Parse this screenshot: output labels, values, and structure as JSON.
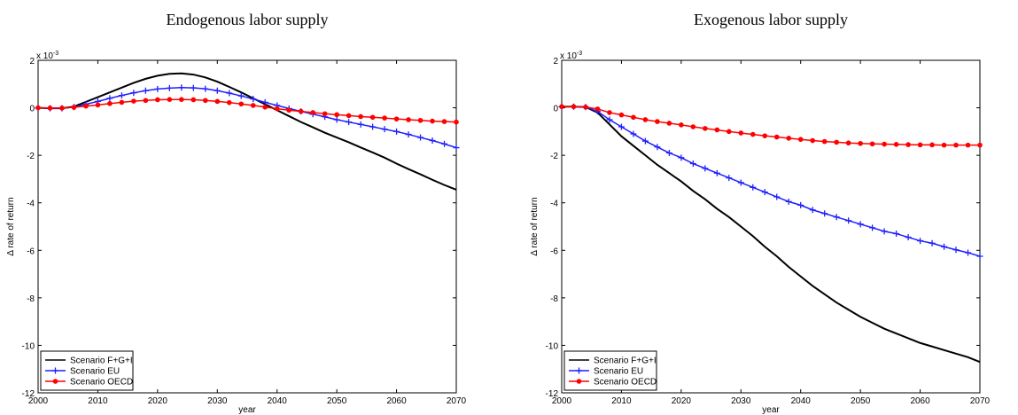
{
  "chart_data": [
    {
      "type": "line",
      "title": "Endogenous labor supply",
      "xlabel": "year",
      "ylabel": "Δ rate of return",
      "axis_multiplier": {
        "base": "x 10",
        "exponent": "-3"
      },
      "x": [
        2000,
        2002,
        2004,
        2006,
        2008,
        2010,
        2012,
        2014,
        2016,
        2018,
        2020,
        2022,
        2024,
        2026,
        2028,
        2030,
        2032,
        2034,
        2036,
        2038,
        2040,
        2042,
        2044,
        2046,
        2048,
        2050,
        2052,
        2054,
        2056,
        2058,
        2060,
        2062,
        2064,
        2066,
        2068,
        2070
      ],
      "xlim": [
        2000,
        2070
      ],
      "xticks": [
        2000,
        2010,
        2020,
        2030,
        2040,
        2050,
        2060,
        2070
      ],
      "ylim": [
        -12,
        2
      ],
      "yticks": [
        -12,
        -10,
        -8,
        -6,
        -4,
        -2,
        0,
        2
      ],
      "legend": "lower left",
      "series": [
        {
          "name": "Scenario F+G+I",
          "color": "#000000",
          "marker": "none",
          "values": [
            0,
            -0.02,
            -0.02,
            0.05,
            0.25,
            0.45,
            0.65,
            0.85,
            1.05,
            1.22,
            1.35,
            1.43,
            1.45,
            1.4,
            1.28,
            1.1,
            0.88,
            0.65,
            0.4,
            0.15,
            -0.1,
            -0.35,
            -0.6,
            -0.82,
            -1.05,
            -1.25,
            -1.45,
            -1.67,
            -1.88,
            -2.1,
            -2.35,
            -2.58,
            -2.8,
            -3.03,
            -3.25,
            -3.45
          ]
        },
        {
          "name": "Scenario EU",
          "color": "#1f1fff",
          "marker": "plus",
          "values": [
            0,
            -0.02,
            -0.02,
            0.03,
            0.15,
            0.27,
            0.4,
            0.52,
            0.63,
            0.72,
            0.79,
            0.83,
            0.85,
            0.84,
            0.8,
            0.72,
            0.62,
            0.5,
            0.37,
            0.23,
            0.1,
            -0.03,
            -0.15,
            -0.27,
            -0.38,
            -0.5,
            -0.6,
            -0.7,
            -0.8,
            -0.9,
            -1.0,
            -1.12,
            -1.25,
            -1.38,
            -1.52,
            -1.68
          ]
        },
        {
          "name": "Scenario OECD",
          "color": "#ff0000",
          "marker": "dot",
          "values": [
            0,
            -0.01,
            -0.01,
            0.02,
            0.07,
            0.12,
            0.18,
            0.23,
            0.28,
            0.31,
            0.34,
            0.35,
            0.35,
            0.34,
            0.31,
            0.27,
            0.22,
            0.16,
            0.1,
            0.03,
            -0.04,
            -0.1,
            -0.15,
            -0.2,
            -0.25,
            -0.29,
            -0.33,
            -0.37,
            -0.4,
            -0.43,
            -0.47,
            -0.5,
            -0.53,
            -0.56,
            -0.58,
            -0.6
          ]
        }
      ]
    },
    {
      "type": "line",
      "title": "Exogenous labor supply",
      "xlabel": "year",
      "ylabel": "Δ rate of return",
      "axis_multiplier": {
        "base": "x 10",
        "exponent": "-3"
      },
      "x": [
        2000,
        2002,
        2004,
        2006,
        2008,
        2010,
        2012,
        2014,
        2016,
        2018,
        2020,
        2022,
        2024,
        2026,
        2028,
        2030,
        2032,
        2034,
        2036,
        2038,
        2040,
        2042,
        2044,
        2046,
        2048,
        2050,
        2052,
        2054,
        2056,
        2058,
        2060,
        2062,
        2064,
        2066,
        2068,
        2070
      ],
      "xlim": [
        2000,
        2070
      ],
      "xticks": [
        2000,
        2010,
        2020,
        2030,
        2040,
        2050,
        2060,
        2070
      ],
      "ylim": [
        -12,
        2
      ],
      "yticks": [
        -12,
        -10,
        -8,
        -6,
        -4,
        -2,
        0,
        2
      ],
      "legend": "lower left",
      "series": [
        {
          "name": "Scenario F+G+I",
          "color": "#000000",
          "marker": "none",
          "values": [
            0.05,
            0.05,
            0.03,
            -0.2,
            -0.7,
            -1.2,
            -1.6,
            -2.0,
            -2.4,
            -2.75,
            -3.1,
            -3.5,
            -3.85,
            -4.25,
            -4.6,
            -5.0,
            -5.4,
            -5.85,
            -6.25,
            -6.7,
            -7.1,
            -7.5,
            -7.85,
            -8.2,
            -8.5,
            -8.8,
            -9.05,
            -9.3,
            -9.5,
            -9.7,
            -9.9,
            -10.05,
            -10.2,
            -10.35,
            -10.5,
            -10.7
          ]
        },
        {
          "name": "Scenario EU",
          "color": "#1f1fff",
          "marker": "plus",
          "values": [
            0.05,
            0.05,
            0.03,
            -0.15,
            -0.5,
            -0.8,
            -1.1,
            -1.4,
            -1.65,
            -1.9,
            -2.1,
            -2.35,
            -2.55,
            -2.75,
            -2.95,
            -3.15,
            -3.35,
            -3.55,
            -3.75,
            -3.95,
            -4.1,
            -4.3,
            -4.45,
            -4.6,
            -4.75,
            -4.9,
            -5.05,
            -5.2,
            -5.3,
            -5.45,
            -5.6,
            -5.7,
            -5.85,
            -5.98,
            -6.1,
            -6.25
          ]
        },
        {
          "name": "Scenario OECD",
          "color": "#ff0000",
          "marker": "dot",
          "values": [
            0.05,
            0.05,
            0.03,
            -0.05,
            -0.2,
            -0.3,
            -0.4,
            -0.5,
            -0.58,
            -0.65,
            -0.72,
            -0.8,
            -0.87,
            -0.93,
            -1.0,
            -1.06,
            -1.12,
            -1.18,
            -1.23,
            -1.28,
            -1.33,
            -1.38,
            -1.42,
            -1.45,
            -1.48,
            -1.5,
            -1.52,
            -1.53,
            -1.54,
            -1.55,
            -1.56,
            -1.56,
            -1.57,
            -1.57,
            -1.57,
            -1.57
          ]
        }
      ]
    }
  ]
}
